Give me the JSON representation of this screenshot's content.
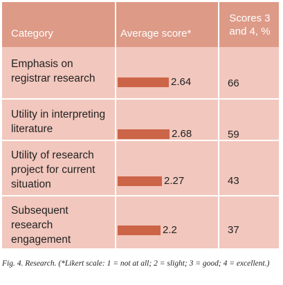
{
  "table": {
    "headers": {
      "category": "Category",
      "average": "Average score*",
      "pct": "Scores 3 and 4, %"
    }
  },
  "chart_data": {
    "type": "table",
    "title": "",
    "columns": [
      "Category",
      "Average score*",
      "Scores 3 and 4, %"
    ],
    "rows": [
      {
        "category": "Emphasis on registrar research",
        "average": 2.64,
        "pct": 66
      },
      {
        "category": "Utility in interpreting literature",
        "average": 2.68,
        "pct": 59
      },
      {
        "category": "Utility of research project for current situation",
        "average": 2.27,
        "pct": 43
      },
      {
        "category": "Subsequent research engagement",
        "average": 2.2,
        "pct": 37
      }
    ],
    "bar_color": "#cc6448",
    "header_color": "#dd9a87",
    "body_color": "#f2c7bd"
  },
  "caption": "Fig. 4. Research. (*Likert scale: 1 = not at all; 2 = slight; 3 = good; 4 = excellent.)"
}
